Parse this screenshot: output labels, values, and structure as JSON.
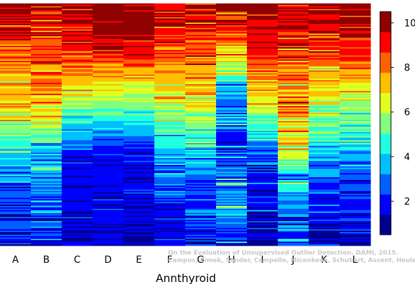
{
  "chart_data": {
    "type": "heatmap",
    "title": "",
    "xlabel": "Annthyroid",
    "ylabel": "",
    "categories": [
      "A",
      "B",
      "C",
      "D",
      "E",
      "F",
      "G",
      "H",
      "I",
      "J",
      "K",
      "L"
    ],
    "colorbar": {
      "ticks": [
        2,
        4,
        6,
        8,
        10
      ],
      "range": [
        0.5,
        10.5
      ],
      "colors": [
        "#00008f",
        "#0000ff",
        "#005fff",
        "#00bfff",
        "#20ffdf",
        "#80ff80",
        "#dfff20",
        "#ffbf00",
        "#ff6000",
        "#ff0000",
        "#8f0000"
      ]
    },
    "series": [
      {
        "name": "A",
        "profile": [
          [
            0,
            10
          ],
          [
            0.25,
            8
          ],
          [
            0.45,
            7
          ],
          [
            0.6,
            4
          ],
          [
            0.75,
            3
          ],
          [
            1,
            1.5
          ]
        ],
        "noise": 2.2
      },
      {
        "name": "B",
        "profile": [
          [
            0,
            10
          ],
          [
            0.25,
            8
          ],
          [
            0.45,
            7
          ],
          [
            0.6,
            4
          ],
          [
            0.75,
            3
          ],
          [
            1,
            1.5
          ]
        ],
        "noise": 2.2
      },
      {
        "name": "C",
        "profile": [
          [
            0,
            10
          ],
          [
            0.2,
            9
          ],
          [
            0.38,
            6.5
          ],
          [
            0.52,
            4
          ],
          [
            0.62,
            1.8
          ],
          [
            1,
            1.5
          ]
        ],
        "noise": 1.4
      },
      {
        "name": "D",
        "profile": [
          [
            0,
            10.3
          ],
          [
            0.18,
            9.5
          ],
          [
            0.35,
            6.5
          ],
          [
            0.5,
            4
          ],
          [
            0.62,
            1.8
          ],
          [
            1,
            1.3
          ]
        ],
        "noise": 0.9
      },
      {
        "name": "E",
        "profile": [
          [
            0,
            10.3
          ],
          [
            0.18,
            9.5
          ],
          [
            0.35,
            6.5
          ],
          [
            0.5,
            4
          ],
          [
            0.62,
            1.8
          ],
          [
            1,
            1.3
          ]
        ],
        "noise": 1.0
      },
      {
        "name": "F",
        "profile": [
          [
            0,
            10
          ],
          [
            0.25,
            8
          ],
          [
            0.45,
            6
          ],
          [
            0.6,
            4
          ],
          [
            0.75,
            2.5
          ],
          [
            1,
            1.5
          ]
        ],
        "noise": 1.8
      },
      {
        "name": "G",
        "profile": [
          [
            0,
            10
          ],
          [
            0.25,
            8
          ],
          [
            0.45,
            6
          ],
          [
            0.6,
            4
          ],
          [
            0.75,
            2.5
          ],
          [
            1,
            1.5
          ]
        ],
        "noise": 1.8
      },
      {
        "name": "H",
        "profile": [
          [
            0,
            10
          ],
          [
            0.12,
            8.5
          ],
          [
            0.25,
            6
          ],
          [
            0.4,
            3
          ],
          [
            0.6,
            2
          ],
          [
            0.85,
            3.5
          ],
          [
            1,
            2
          ]
        ],
        "noise": 2.6
      },
      {
        "name": "I",
        "profile": [
          [
            0,
            10.2
          ],
          [
            0.2,
            9
          ],
          [
            0.4,
            6.5
          ],
          [
            0.55,
            4
          ],
          [
            0.7,
            2
          ],
          [
            1,
            1.5
          ]
        ],
        "noise": 1.6
      },
      {
        "name": "J",
        "profile": [
          [
            0,
            10
          ],
          [
            0.3,
            8
          ],
          [
            0.55,
            7
          ],
          [
            0.75,
            4
          ],
          [
            1,
            2
          ]
        ],
        "noise": 2.6
      },
      {
        "name": "K",
        "profile": [
          [
            0,
            10
          ],
          [
            0.25,
            8
          ],
          [
            0.45,
            6
          ],
          [
            0.6,
            4
          ],
          [
            0.75,
            2.5
          ],
          [
            1,
            1.5
          ]
        ],
        "noise": 2.0
      },
      {
        "name": "L",
        "profile": [
          [
            0,
            10.3
          ],
          [
            0.2,
            9
          ],
          [
            0.4,
            6
          ],
          [
            0.6,
            4
          ],
          [
            0.75,
            2.2
          ],
          [
            1,
            1.4
          ]
        ],
        "noise": 1.4
      }
    ],
    "legend": "right",
    "grid": false
  },
  "credit": {
    "line1": "On the Evaluation of Unsupervised Outlier Detection. DAMI, 2015.",
    "line2": "Campos, Zimek, Sander, Campello, Micenkova, Schubert, Assent, Houle"
  }
}
